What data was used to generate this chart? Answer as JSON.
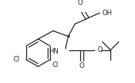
{
  "bg_color": "#ffffff",
  "line_color": "#2a2a2a",
  "line_width": 0.9,
  "font_size": 6.0,
  "figsize": [
    1.7,
    1.04
  ],
  "dpi": 100,
  "xlim": [
    0,
    170
  ],
  "ylim": [
    0,
    104
  ]
}
